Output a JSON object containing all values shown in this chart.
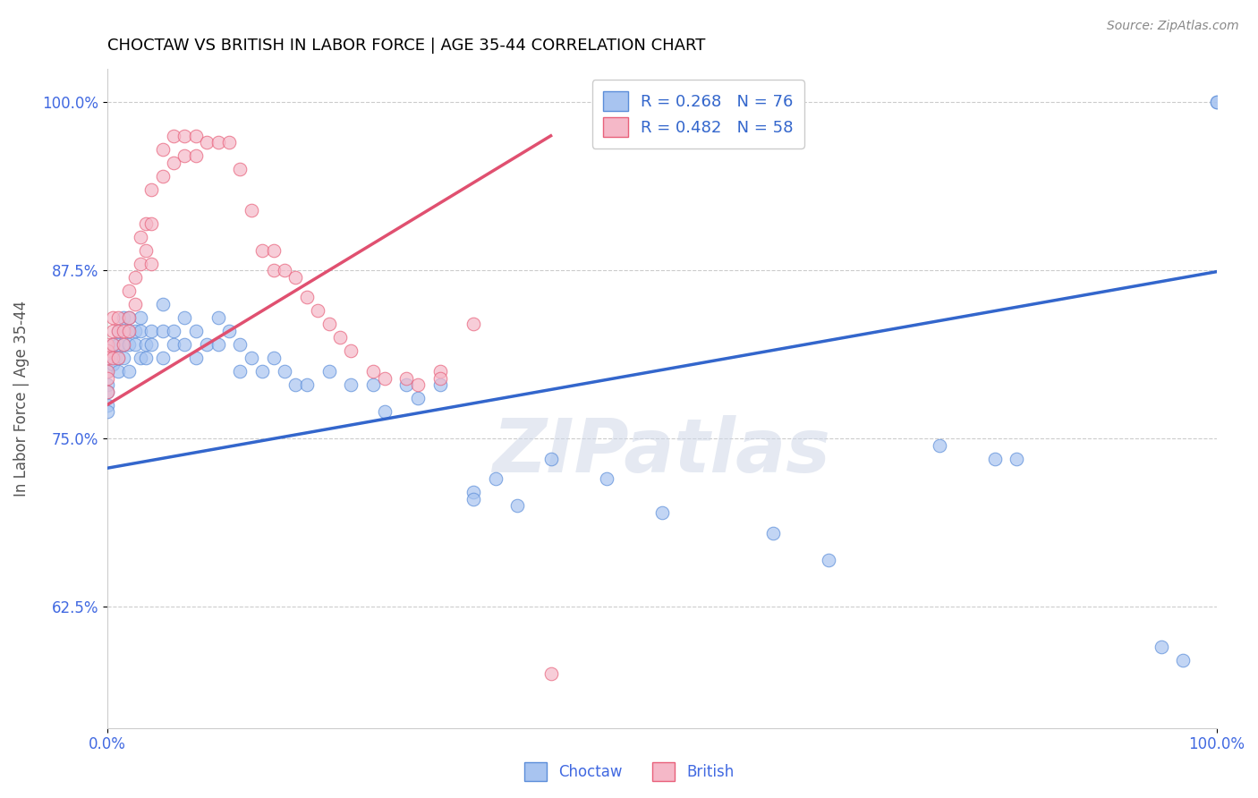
{
  "title": "CHOCTAW VS BRITISH IN LABOR FORCE | AGE 35-44 CORRELATION CHART",
  "source": "Source: ZipAtlas.com",
  "ylabel": "In Labor Force | Age 35-44",
  "xlim": [
    0.0,
    1.0
  ],
  "ylim": [
    0.535,
    1.025
  ],
  "ytick_labels": [
    "62.5%",
    "75.0%",
    "87.5%",
    "100.0%"
  ],
  "ytick_values": [
    0.625,
    0.75,
    0.875,
    1.0
  ],
  "blue_R": 0.268,
  "blue_N": 76,
  "pink_R": 0.482,
  "pink_N": 58,
  "blue_color": "#a8c4f0",
  "pink_color": "#f5b8c8",
  "blue_edge_color": "#5b8dd9",
  "pink_edge_color": "#e8607a",
  "blue_line_color": "#3366cc",
  "pink_line_color": "#e05070",
  "legend_label_blue": "Choctaw",
  "legend_label_pink": "British",
  "watermark": "ZIPatlas",
  "blue_scatter_x": [
    0.0,
    0.0,
    0.0,
    0.0,
    0.0,
    0.005,
    0.005,
    0.005,
    0.01,
    0.01,
    0.01,
    0.01,
    0.015,
    0.015,
    0.015,
    0.02,
    0.02,
    0.02,
    0.02,
    0.025,
    0.025,
    0.03,
    0.03,
    0.03,
    0.035,
    0.035,
    0.04,
    0.04,
    0.05,
    0.05,
    0.05,
    0.06,
    0.06,
    0.07,
    0.07,
    0.08,
    0.08,
    0.09,
    0.1,
    0.1,
    0.11,
    0.12,
    0.12,
    0.13,
    0.14,
    0.15,
    0.16,
    0.17,
    0.18,
    0.2,
    0.22,
    0.24,
    0.25,
    0.27,
    0.28,
    0.3,
    0.33,
    0.33,
    0.35,
    0.37,
    0.4,
    0.45,
    0.5,
    0.6,
    0.65,
    0.75,
    0.8,
    0.82,
    0.95,
    0.97,
    1.0,
    1.0
  ],
  "blue_scatter_y": [
    0.8,
    0.79,
    0.785,
    0.775,
    0.77,
    0.82,
    0.81,
    0.805,
    0.83,
    0.82,
    0.81,
    0.8,
    0.84,
    0.82,
    0.81,
    0.84,
    0.83,
    0.82,
    0.8,
    0.83,
    0.82,
    0.84,
    0.83,
    0.81,
    0.82,
    0.81,
    0.83,
    0.82,
    0.85,
    0.83,
    0.81,
    0.83,
    0.82,
    0.84,
    0.82,
    0.83,
    0.81,
    0.82,
    0.84,
    0.82,
    0.83,
    0.82,
    0.8,
    0.81,
    0.8,
    0.81,
    0.8,
    0.79,
    0.79,
    0.8,
    0.79,
    0.79,
    0.77,
    0.79,
    0.78,
    0.79,
    0.71,
    0.705,
    0.72,
    0.7,
    0.735,
    0.72,
    0.695,
    0.68,
    0.66,
    0.745,
    0.735,
    0.735,
    0.595,
    0.585,
    1.0,
    1.0
  ],
  "pink_scatter_x": [
    0.0,
    0.0,
    0.0,
    0.0,
    0.0,
    0.0,
    0.005,
    0.005,
    0.005,
    0.005,
    0.01,
    0.01,
    0.01,
    0.015,
    0.015,
    0.02,
    0.02,
    0.02,
    0.025,
    0.025,
    0.03,
    0.03,
    0.035,
    0.035,
    0.04,
    0.04,
    0.04,
    0.05,
    0.05,
    0.06,
    0.06,
    0.07,
    0.07,
    0.08,
    0.08,
    0.09,
    0.1,
    0.11,
    0.12,
    0.13,
    0.14,
    0.15,
    0.15,
    0.16,
    0.17,
    0.18,
    0.19,
    0.2,
    0.21,
    0.22,
    0.24,
    0.25,
    0.27,
    0.28,
    0.3,
    0.3,
    0.33,
    0.4
  ],
  "pink_scatter_y": [
    0.82,
    0.815,
    0.81,
    0.8,
    0.795,
    0.785,
    0.84,
    0.83,
    0.82,
    0.81,
    0.84,
    0.83,
    0.81,
    0.83,
    0.82,
    0.86,
    0.84,
    0.83,
    0.87,
    0.85,
    0.9,
    0.88,
    0.91,
    0.89,
    0.935,
    0.91,
    0.88,
    0.965,
    0.945,
    0.975,
    0.955,
    0.975,
    0.96,
    0.975,
    0.96,
    0.97,
    0.97,
    0.97,
    0.95,
    0.92,
    0.89,
    0.89,
    0.875,
    0.875,
    0.87,
    0.855,
    0.845,
    0.835,
    0.825,
    0.815,
    0.8,
    0.795,
    0.795,
    0.79,
    0.8,
    0.795,
    0.835,
    0.575
  ],
  "blue_line_x": [
    0.0,
    1.0
  ],
  "blue_line_y": [
    0.728,
    0.874
  ],
  "pink_line_x": [
    0.0,
    0.4
  ],
  "pink_line_y": [
    0.775,
    0.975
  ]
}
